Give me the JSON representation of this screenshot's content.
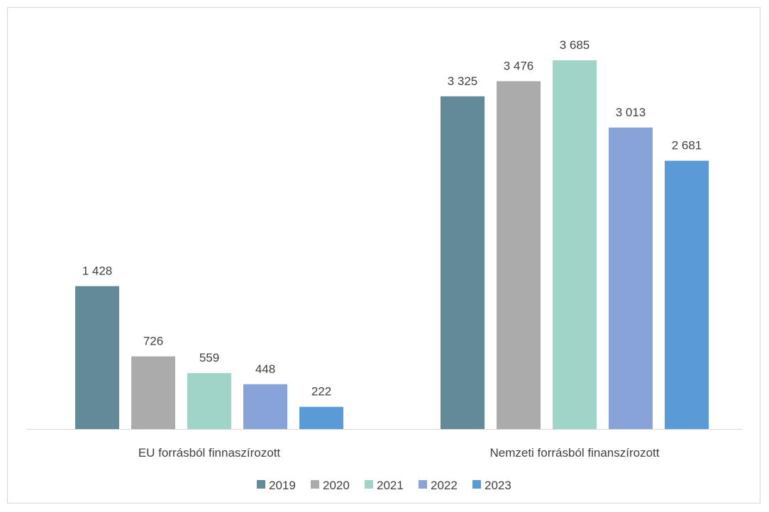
{
  "chart_data": {
    "type": "bar",
    "title": "",
    "xlabel": "",
    "ylabel": "",
    "categories": [
      "EU forrásból finnaszírozott",
      "Nemzeti forrásból finanszírozott"
    ],
    "series": [
      {
        "name": "2019",
        "color": "#628a97",
        "values": [
          1428,
          3325
        ],
        "labels": [
          "1 428",
          "3 325"
        ]
      },
      {
        "name": "2020",
        "color": "#aaabaa",
        "values": [
          726,
          3476
        ],
        "labels": [
          "726",
          "3 476"
        ]
      },
      {
        "name": "2021",
        "color": "#a0d4c8",
        "values": [
          559,
          3685
        ],
        "labels": [
          "559",
          "3 685"
        ]
      },
      {
        "name": "2022",
        "color": "#87a3d8",
        "values": [
          448,
          3013
        ],
        "labels": [
          "448",
          "3 013"
        ]
      },
      {
        "name": "2023",
        "color": "#5b9bd5",
        "values": [
          222,
          2681
        ],
        "labels": [
          "222",
          "2 681"
        ]
      }
    ],
    "ylim": [
      0,
      3685
    ],
    "grid": false,
    "legend_position": "bottom"
  }
}
